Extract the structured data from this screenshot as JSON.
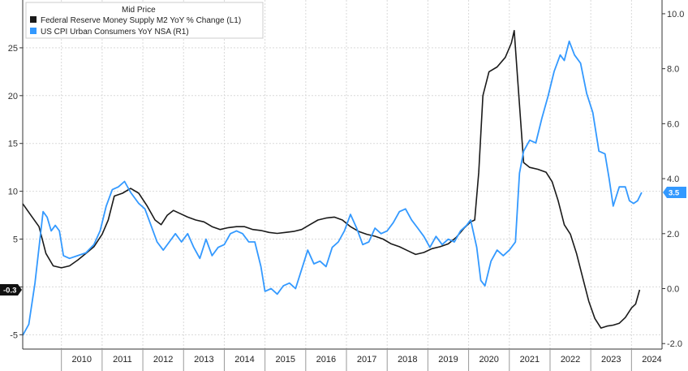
{
  "chart_data": {
    "type": "line",
    "legend": {
      "title": "Mid Price",
      "placement": "top-left",
      "entries": [
        {
          "label": "Federal Reserve Money Supply M2 YoY % Change  (L1)",
          "color": "#1a1a1a"
        },
        {
          "label": "US CPI Urban Consumers YoY NSA  (R1)",
          "color": "#3399ff"
        }
      ]
    },
    "left_axis": {
      "ticks": [
        -5,
        0,
        5,
        10,
        15,
        20,
        25
      ],
      "tick_labels": [
        "-5",
        "0",
        "5",
        "10",
        "15",
        "20",
        "25"
      ],
      "ylim": [
        -6.5,
        30
      ]
    },
    "right_axis": {
      "ticks": [
        -2,
        0,
        2,
        4,
        6,
        8,
        10
      ],
      "tick_labels": [
        "-2.0",
        "0.0",
        "2.0",
        "4.0",
        "6.0",
        "8.0",
        "10.0"
      ],
      "ylim": [
        -2.2,
        10.5
      ]
    },
    "x_axis": {
      "year_labels": [
        "2010",
        "2011",
        "2012",
        "2013",
        "2014",
        "2015",
        "2016",
        "2017",
        "2018",
        "2019",
        "2020",
        "2021",
        "2022",
        "2023",
        "2024"
      ],
      "xlim": [
        2009.05,
        2024.75
      ]
    },
    "grid": true,
    "series": [
      {
        "name": "Federal Reserve Money Supply M2 YoY % Change  (L1)",
        "axis": "left",
        "color": "#1a1a1a",
        "last_value_label": "-0.3",
        "points": [
          [
            2009.05,
            8.7
          ],
          [
            2009.25,
            7.5
          ],
          [
            2009.45,
            6.3
          ],
          [
            2009.62,
            3.5
          ],
          [
            2009.8,
            2.2
          ],
          [
            2010.0,
            2.0
          ],
          [
            2010.2,
            2.2
          ],
          [
            2010.4,
            2.8
          ],
          [
            2010.6,
            3.5
          ],
          [
            2010.8,
            4.2
          ],
          [
            2011.0,
            5.5
          ],
          [
            2011.15,
            7.0
          ],
          [
            2011.3,
            9.5
          ],
          [
            2011.5,
            9.8
          ],
          [
            2011.7,
            10.3
          ],
          [
            2011.9,
            9.8
          ],
          [
            2012.1,
            8.5
          ],
          [
            2012.3,
            7.0
          ],
          [
            2012.45,
            6.5
          ],
          [
            2012.6,
            7.5
          ],
          [
            2012.75,
            8.0
          ],
          [
            2012.9,
            7.7
          ],
          [
            2013.1,
            7.3
          ],
          [
            2013.3,
            7.0
          ],
          [
            2013.5,
            6.8
          ],
          [
            2013.7,
            6.3
          ],
          [
            2013.9,
            6.0
          ],
          [
            2014.1,
            6.2
          ],
          [
            2014.3,
            6.3
          ],
          [
            2014.5,
            6.3
          ],
          [
            2014.7,
            6.0
          ],
          [
            2014.9,
            5.9
          ],
          [
            2015.1,
            5.7
          ],
          [
            2015.3,
            5.6
          ],
          [
            2015.5,
            5.7
          ],
          [
            2015.7,
            5.8
          ],
          [
            2015.9,
            6.0
          ],
          [
            2016.1,
            6.5
          ],
          [
            2016.3,
            7.0
          ],
          [
            2016.5,
            7.2
          ],
          [
            2016.7,
            7.3
          ],
          [
            2016.9,
            7.0
          ],
          [
            2017.1,
            6.3
          ],
          [
            2017.3,
            5.8
          ],
          [
            2017.5,
            5.5
          ],
          [
            2017.7,
            5.3
          ],
          [
            2017.9,
            5.0
          ],
          [
            2018.1,
            4.5
          ],
          [
            2018.3,
            4.2
          ],
          [
            2018.5,
            3.8
          ],
          [
            2018.7,
            3.4
          ],
          [
            2018.9,
            3.6
          ],
          [
            2019.1,
            4.0
          ],
          [
            2019.3,
            4.2
          ],
          [
            2019.5,
            4.5
          ],
          [
            2019.7,
            5.2
          ],
          [
            2019.9,
            6.2
          ],
          [
            2020.05,
            6.8
          ],
          [
            2020.15,
            7.0
          ],
          [
            2020.25,
            12.0
          ],
          [
            2020.35,
            20.0
          ],
          [
            2020.5,
            22.5
          ],
          [
            2020.7,
            23.0
          ],
          [
            2020.9,
            24.0
          ],
          [
            2021.05,
            25.5
          ],
          [
            2021.12,
            26.8
          ],
          [
            2021.2,
            22.0
          ],
          [
            2021.35,
            13.0
          ],
          [
            2021.5,
            12.5
          ],
          [
            2021.7,
            12.3
          ],
          [
            2021.9,
            12.0
          ],
          [
            2022.05,
            11.0
          ],
          [
            2022.2,
            9.0
          ],
          [
            2022.35,
            6.5
          ],
          [
            2022.5,
            5.5
          ],
          [
            2022.65,
            3.5
          ],
          [
            2022.8,
            1.0
          ],
          [
            2022.95,
            -1.5
          ],
          [
            2023.1,
            -3.3
          ],
          [
            2023.25,
            -4.3
          ],
          [
            2023.4,
            -4.1
          ],
          [
            2023.55,
            -4.0
          ],
          [
            2023.7,
            -3.8
          ],
          [
            2023.85,
            -3.2
          ],
          [
            2024.0,
            -2.2
          ],
          [
            2024.1,
            -1.8
          ],
          [
            2024.2,
            -0.3
          ]
        ]
      },
      {
        "name": "US CPI Urban Consumers YoY NSA  (R1)",
        "axis": "right",
        "color": "#3399ff",
        "last_value_label": "3.5",
        "points": [
          [
            2009.05,
            -1.7
          ],
          [
            2009.2,
            -1.3
          ],
          [
            2009.35,
            0.2
          ],
          [
            2009.45,
            1.5
          ],
          [
            2009.55,
            2.8
          ],
          [
            2009.65,
            2.6
          ],
          [
            2009.75,
            2.1
          ],
          [
            2009.85,
            2.3
          ],
          [
            2009.95,
            2.1
          ],
          [
            2010.05,
            1.2
          ],
          [
            2010.2,
            1.1
          ],
          [
            2010.4,
            1.2
          ],
          [
            2010.6,
            1.3
          ],
          [
            2010.8,
            1.6
          ],
          [
            2010.95,
            2.1
          ],
          [
            2011.1,
            3.0
          ],
          [
            2011.25,
            3.6
          ],
          [
            2011.4,
            3.7
          ],
          [
            2011.55,
            3.9
          ],
          [
            2011.7,
            3.5
          ],
          [
            2011.9,
            3.1
          ],
          [
            2012.05,
            2.9
          ],
          [
            2012.2,
            2.3
          ],
          [
            2012.35,
            1.7
          ],
          [
            2012.5,
            1.4
          ],
          [
            2012.65,
            1.7
          ],
          [
            2012.8,
            2.0
          ],
          [
            2012.95,
            1.7
          ],
          [
            2013.1,
            2.0
          ],
          [
            2013.25,
            1.5
          ],
          [
            2013.4,
            1.1
          ],
          [
            2013.55,
            1.8
          ],
          [
            2013.7,
            1.2
          ],
          [
            2013.85,
            1.5
          ],
          [
            2014.0,
            1.6
          ],
          [
            2014.15,
            2.0
          ],
          [
            2014.3,
            2.1
          ],
          [
            2014.45,
            2.0
          ],
          [
            2014.6,
            1.7
          ],
          [
            2014.75,
            1.7
          ],
          [
            2014.9,
            0.8
          ],
          [
            2015.0,
            -0.1
          ],
          [
            2015.15,
            0.0
          ],
          [
            2015.3,
            -0.2
          ],
          [
            2015.45,
            0.1
          ],
          [
            2015.6,
            0.2
          ],
          [
            2015.75,
            0.0
          ],
          [
            2015.9,
            0.7
          ],
          [
            2016.05,
            1.4
          ],
          [
            2016.2,
            0.9
          ],
          [
            2016.35,
            1.0
          ],
          [
            2016.5,
            0.8
          ],
          [
            2016.65,
            1.5
          ],
          [
            2016.8,
            1.7
          ],
          [
            2016.95,
            2.1
          ],
          [
            2017.1,
            2.7
          ],
          [
            2017.25,
            2.2
          ],
          [
            2017.4,
            1.6
          ],
          [
            2017.55,
            1.7
          ],
          [
            2017.7,
            2.2
          ],
          [
            2017.85,
            2.0
          ],
          [
            2018.0,
            2.1
          ],
          [
            2018.15,
            2.4
          ],
          [
            2018.3,
            2.8
          ],
          [
            2018.45,
            2.9
          ],
          [
            2018.6,
            2.5
          ],
          [
            2018.75,
            2.2
          ],
          [
            2018.9,
            1.9
          ],
          [
            2019.05,
            1.5
          ],
          [
            2019.2,
            1.9
          ],
          [
            2019.35,
            1.6
          ],
          [
            2019.5,
            1.8
          ],
          [
            2019.65,
            1.7
          ],
          [
            2019.8,
            2.1
          ],
          [
            2019.95,
            2.3
          ],
          [
            2020.05,
            2.5
          ],
          [
            2020.2,
            1.5
          ],
          [
            2020.3,
            0.3
          ],
          [
            2020.4,
            0.1
          ],
          [
            2020.55,
            1.0
          ],
          [
            2020.7,
            1.4
          ],
          [
            2020.85,
            1.2
          ],
          [
            2021.0,
            1.4
          ],
          [
            2021.15,
            1.7
          ],
          [
            2021.25,
            4.2
          ],
          [
            2021.35,
            5.0
          ],
          [
            2021.5,
            5.4
          ],
          [
            2021.65,
            5.3
          ],
          [
            2021.8,
            6.2
          ],
          [
            2021.95,
            7.0
          ],
          [
            2022.1,
            7.9
          ],
          [
            2022.25,
            8.5
          ],
          [
            2022.35,
            8.3
          ],
          [
            2022.47,
            9.0
          ],
          [
            2022.6,
            8.5
          ],
          [
            2022.75,
            8.2
          ],
          [
            2022.9,
            7.1
          ],
          [
            2023.05,
            6.4
          ],
          [
            2023.2,
            5.0
          ],
          [
            2023.35,
            4.9
          ],
          [
            2023.45,
            4.0
          ],
          [
            2023.55,
            3.0
          ],
          [
            2023.7,
            3.7
          ],
          [
            2023.85,
            3.7
          ],
          [
            2023.95,
            3.2
          ],
          [
            2024.05,
            3.1
          ],
          [
            2024.15,
            3.2
          ],
          [
            2024.25,
            3.5
          ]
        ]
      }
    ]
  }
}
